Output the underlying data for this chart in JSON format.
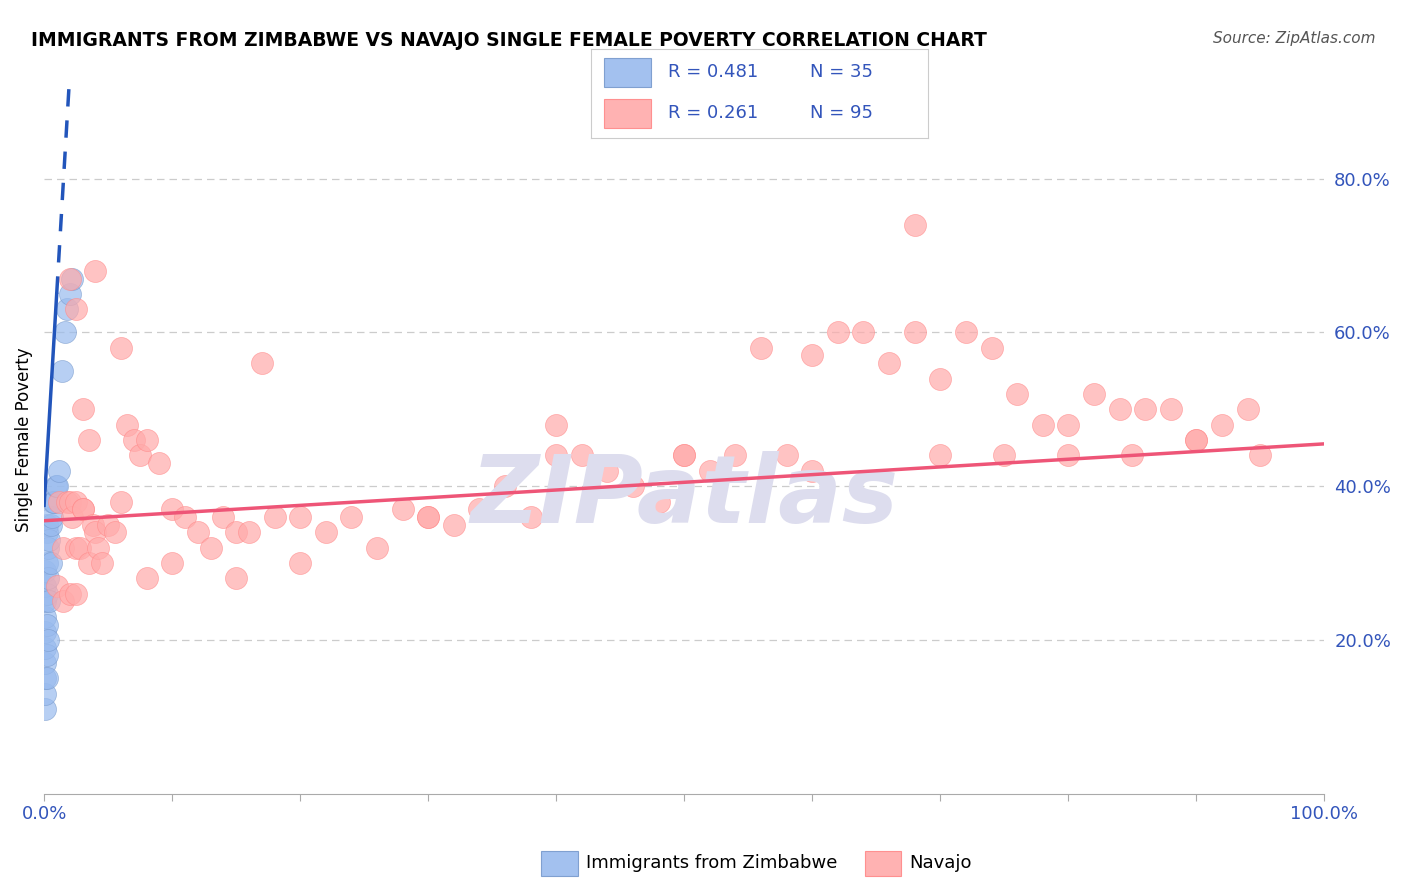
{
  "title": "IMMIGRANTS FROM ZIMBABWE VS NAVAJO SINGLE FEMALE POVERTY CORRELATION CHART",
  "source": "Source: ZipAtlas.com",
  "ylabel": "Single Female Poverty",
  "xlim": [
    0.0,
    1.0
  ],
  "ylim": [
    0.0,
    0.92
  ],
  "ytick_positions": [
    0.2,
    0.4,
    0.6,
    0.8
  ],
  "ytick_labels": [
    "20.0%",
    "40.0%",
    "60.0%",
    "80.0%"
  ],
  "xtick_positions": [
    0.0,
    0.1,
    0.2,
    0.3,
    0.4,
    0.5,
    0.6,
    0.7,
    0.8,
    0.9,
    1.0
  ],
  "xtick_labels_show": [
    "0.0%",
    "",
    "",
    "",
    "",
    "",
    "",
    "",
    "",
    "",
    "100.0%"
  ],
  "legend_label_blue": "Immigrants from Zimbabwe",
  "legend_label_pink": "Navajo",
  "legend_r_blue": "R = 0.481",
  "legend_n_blue": "N = 35",
  "legend_r_pink": "R = 0.261",
  "legend_n_pink": "N = 95",
  "blue_color": "#99BBEE",
  "pink_color": "#FFAAAA",
  "blue_edge_color": "#7799CC",
  "pink_edge_color": "#FF8888",
  "blue_trend_color": "#2255BB",
  "pink_trend_color": "#EE5577",
  "text_color": "#3355BB",
  "grid_color": "#CCCCCC",
  "watermark_color": "#DDDDEE",
  "blue_intercept": 0.375,
  "blue_slope": 28.0,
  "pink_intercept": 0.355,
  "pink_slope": 0.1,
  "blue_x": [
    0.001,
    0.001,
    0.001,
    0.001,
    0.001,
    0.001,
    0.001,
    0.001,
    0.001,
    0.001,
    0.002,
    0.002,
    0.002,
    0.002,
    0.002,
    0.002,
    0.002,
    0.003,
    0.003,
    0.003,
    0.004,
    0.004,
    0.005,
    0.005,
    0.006,
    0.007,
    0.008,
    0.009,
    0.01,
    0.012,
    0.014,
    0.016,
    0.018,
    0.02,
    0.022
  ],
  "blue_y": [
    0.11,
    0.13,
    0.15,
    0.17,
    0.19,
    0.21,
    0.23,
    0.25,
    0.27,
    0.29,
    0.15,
    0.18,
    0.22,
    0.26,
    0.3,
    0.34,
    0.35,
    0.2,
    0.28,
    0.32,
    0.25,
    0.33,
    0.3,
    0.35,
    0.36,
    0.38,
    0.38,
    0.4,
    0.4,
    0.42,
    0.55,
    0.6,
    0.63,
    0.65,
    0.67
  ],
  "pink_x": [
    0.012,
    0.015,
    0.018,
    0.02,
    0.022,
    0.025,
    0.025,
    0.028,
    0.03,
    0.03,
    0.035,
    0.038,
    0.04,
    0.042,
    0.045,
    0.05,
    0.055,
    0.06,
    0.065,
    0.07,
    0.075,
    0.08,
    0.09,
    0.1,
    0.11,
    0.12,
    0.13,
    0.14,
    0.15,
    0.16,
    0.17,
    0.18,
    0.2,
    0.22,
    0.24,
    0.26,
    0.28,
    0.3,
    0.32,
    0.34,
    0.36,
    0.38,
    0.4,
    0.42,
    0.44,
    0.46,
    0.48,
    0.5,
    0.52,
    0.54,
    0.56,
    0.58,
    0.6,
    0.62,
    0.64,
    0.66,
    0.68,
    0.7,
    0.72,
    0.74,
    0.76,
    0.78,
    0.8,
    0.82,
    0.84,
    0.86,
    0.88,
    0.9,
    0.92,
    0.94,
    0.02,
    0.025,
    0.03,
    0.035,
    0.04,
    0.06,
    0.08,
    0.1,
    0.15,
    0.2,
    0.3,
    0.4,
    0.5,
    0.6,
    0.7,
    0.75,
    0.8,
    0.85,
    0.9,
    0.95,
    0.01,
    0.015,
    0.02,
    0.025,
    0.68
  ],
  "pink_y": [
    0.38,
    0.32,
    0.38,
    0.38,
    0.36,
    0.32,
    0.38,
    0.32,
    0.37,
    0.37,
    0.3,
    0.35,
    0.34,
    0.32,
    0.3,
    0.35,
    0.34,
    0.58,
    0.48,
    0.46,
    0.44,
    0.46,
    0.43,
    0.37,
    0.36,
    0.34,
    0.32,
    0.36,
    0.34,
    0.34,
    0.56,
    0.36,
    0.36,
    0.34,
    0.36,
    0.32,
    0.37,
    0.36,
    0.35,
    0.37,
    0.4,
    0.36,
    0.44,
    0.44,
    0.42,
    0.4,
    0.38,
    0.44,
    0.42,
    0.44,
    0.58,
    0.44,
    0.57,
    0.6,
    0.6,
    0.56,
    0.6,
    0.54,
    0.6,
    0.58,
    0.52,
    0.48,
    0.48,
    0.52,
    0.5,
    0.5,
    0.5,
    0.46,
    0.48,
    0.5,
    0.67,
    0.63,
    0.5,
    0.46,
    0.68,
    0.38,
    0.28,
    0.3,
    0.28,
    0.3,
    0.36,
    0.48,
    0.44,
    0.42,
    0.44,
    0.44,
    0.44,
    0.44,
    0.46,
    0.44,
    0.27,
    0.25,
    0.26,
    0.26,
    0.74
  ]
}
